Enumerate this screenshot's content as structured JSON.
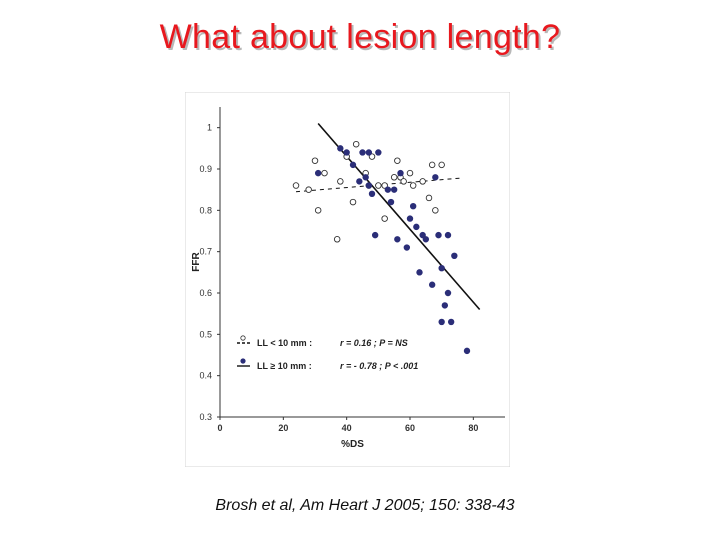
{
  "slide": {
    "title": "What about lesion length?",
    "citation": "Brosh et al, Am Heart J 2005; 150: 338-43"
  },
  "colors": {
    "title": "#e8181e",
    "filled_marker": "#2b2e78",
    "axis": "#333333"
  },
  "chart_data": {
    "type": "scatter",
    "title": "",
    "xlabel": "%DS",
    "ylabel": "FFR",
    "xlim": [
      0,
      90
    ],
    "ylim": [
      0.3,
      1.05
    ],
    "xticks": [
      "0",
      "20",
      "40",
      "60",
      "80"
    ],
    "yticks": [
      "0.3",
      "0.4",
      "0.5",
      "0.6",
      "0.7",
      "0.8",
      "0.9",
      "1"
    ],
    "grid": false,
    "legend_placement": "bottom-left",
    "series": [
      {
        "name": "LL < 10 mm",
        "legend_label": "LL < 10 mm :",
        "stats": "r = 0.16 ; P = NS",
        "marker": "open-circle",
        "line_style": "dashed",
        "fit": {
          "x": [
            24,
            76
          ],
          "y": [
            0.845,
            0.878
          ]
        },
        "points": [
          [
            24,
            0.86
          ],
          [
            28,
            0.85
          ],
          [
            30,
            0.92
          ],
          [
            31,
            0.8
          ],
          [
            33,
            0.89
          ],
          [
            37,
            0.73
          ],
          [
            38,
            0.87
          ],
          [
            40,
            0.93
          ],
          [
            42,
            0.82
          ],
          [
            43,
            0.96
          ],
          [
            46,
            0.89
          ],
          [
            47,
            0.86
          ],
          [
            48,
            0.93
          ],
          [
            50,
            0.86
          ],
          [
            52,
            0.78
          ],
          [
            52,
            0.86
          ],
          [
            55,
            0.88
          ],
          [
            56,
            0.92
          ],
          [
            57,
            0.88
          ],
          [
            58,
            0.87
          ],
          [
            60,
            0.89
          ],
          [
            61,
            0.86
          ],
          [
            64,
            0.87
          ],
          [
            66,
            0.83
          ],
          [
            67,
            0.91
          ],
          [
            68,
            0.8
          ],
          [
            70,
            0.91
          ]
        ]
      },
      {
        "name": "LL ≥ 10 mm",
        "legend_label": "LL ≥ 10 mm :",
        "stats": "r = - 0.78 ; P < .001",
        "marker": "filled-circle",
        "line_style": "solid",
        "fit": {
          "x": [
            31,
            82
          ],
          "y": [
            1.01,
            0.56
          ]
        },
        "points": [
          [
            31,
            0.89
          ],
          [
            38,
            0.95
          ],
          [
            40,
            0.94
          ],
          [
            42,
            0.91
          ],
          [
            44,
            0.87
          ],
          [
            45,
            0.94
          ],
          [
            46,
            0.88
          ],
          [
            47,
            0.94
          ],
          [
            47,
            0.86
          ],
          [
            48,
            0.84
          ],
          [
            49,
            0.74
          ],
          [
            50,
            0.94
          ],
          [
            53,
            0.85
          ],
          [
            54,
            0.82
          ],
          [
            55,
            0.85
          ],
          [
            56,
            0.73
          ],
          [
            57,
            0.89
          ],
          [
            59,
            0.71
          ],
          [
            60,
            0.78
          ],
          [
            61,
            0.81
          ],
          [
            62,
            0.76
          ],
          [
            63,
            0.65
          ],
          [
            64,
            0.74
          ],
          [
            65,
            0.73
          ],
          [
            67,
            0.62
          ],
          [
            68,
            0.88
          ],
          [
            69,
            0.74
          ],
          [
            70,
            0.66
          ],
          [
            70,
            0.53
          ],
          [
            71,
            0.57
          ],
          [
            72,
            0.6
          ],
          [
            72,
            0.74
          ],
          [
            73,
            0.53
          ],
          [
            74,
            0.69
          ],
          [
            78,
            0.46
          ]
        ]
      }
    ]
  }
}
